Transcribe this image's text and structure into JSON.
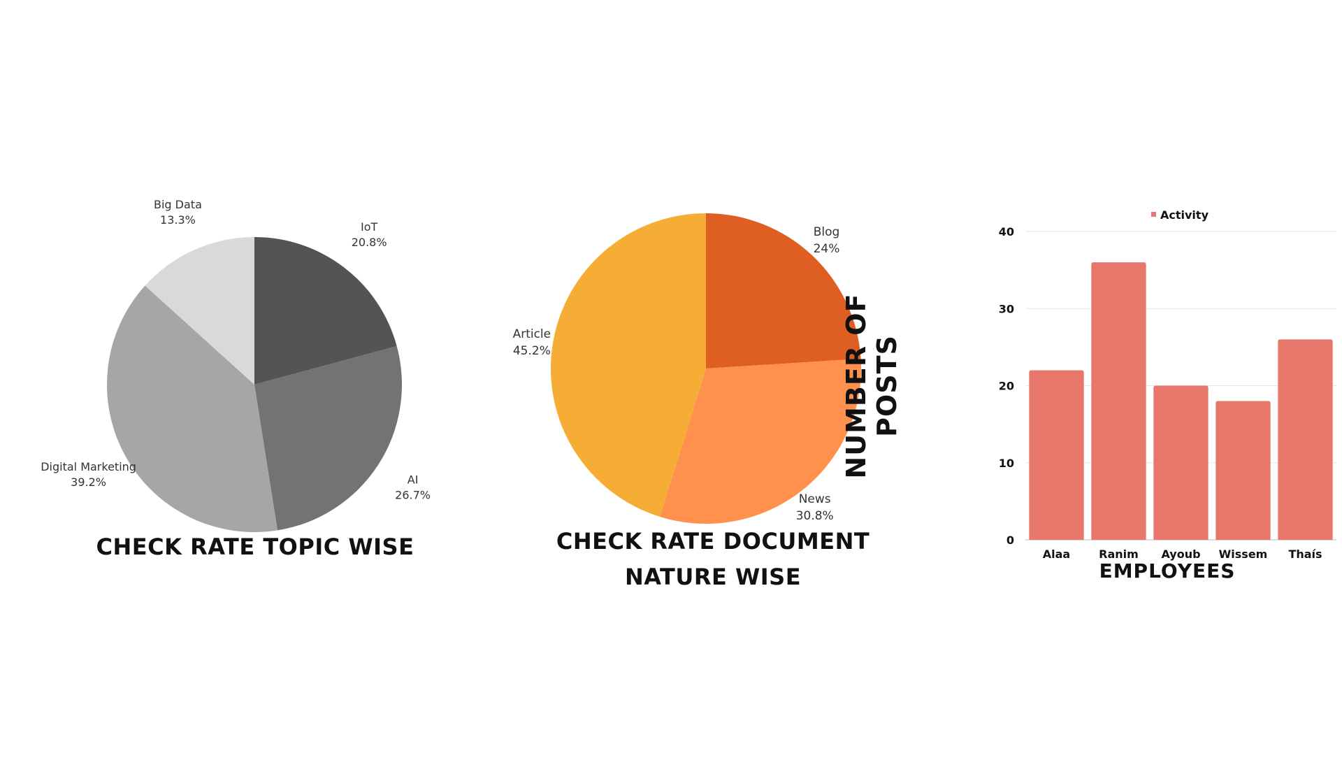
{
  "chart_data": [
    {
      "type": "pie",
      "title": "CHECK RATE TOPIC WISE",
      "slices": [
        {
          "label": "IoT",
          "value": 20.8,
          "value_text": "20.8%",
          "color": "#545454"
        },
        {
          "label": "AI",
          "value": 26.7,
          "value_text": "26.7%",
          "color": "#737373"
        },
        {
          "label": "Digital Marketing",
          "value": 39.2,
          "value_text": "39.2%",
          "color": "#a6a6a6"
        },
        {
          "label": "Big Data",
          "value": 13.3,
          "value_text": "13.3%",
          "color": "#d9d9d9"
        }
      ],
      "start_angle": "12 o'clock",
      "direction": "clockwise"
    },
    {
      "type": "pie",
      "title": "CHECK RATE DOCUMENT NATURE WISE",
      "slices": [
        {
          "label": "Blog",
          "value": 24,
          "value_text": "24%",
          "color": "#df5f22"
        },
        {
          "label": "News",
          "value": 30.8,
          "value_text": "30.8%",
          "color": "#ff914d"
        },
        {
          "label": "Article",
          "value": 45.2,
          "value_text": "45.2%",
          "color": "#f5ad35"
        }
      ],
      "start_angle": "12 o'clock",
      "direction": "clockwise"
    },
    {
      "type": "bar",
      "title": "",
      "categories": [
        "Alaa",
        "Ranim",
        "Ayoub",
        "Wissem",
        "Thaís"
      ],
      "series": [
        {
          "name": "Activity",
          "values": [
            22,
            36,
            20,
            18,
            26
          ],
          "color": "#e8776b"
        }
      ],
      "xlabel": "EMPLOYEES",
      "ylabel": "NUMBER OF POSTS",
      "ylim": [
        0,
        40
      ],
      "yticks": [
        0,
        10,
        20,
        30,
        40
      ],
      "grid": true,
      "legend": "top-center"
    }
  ]
}
